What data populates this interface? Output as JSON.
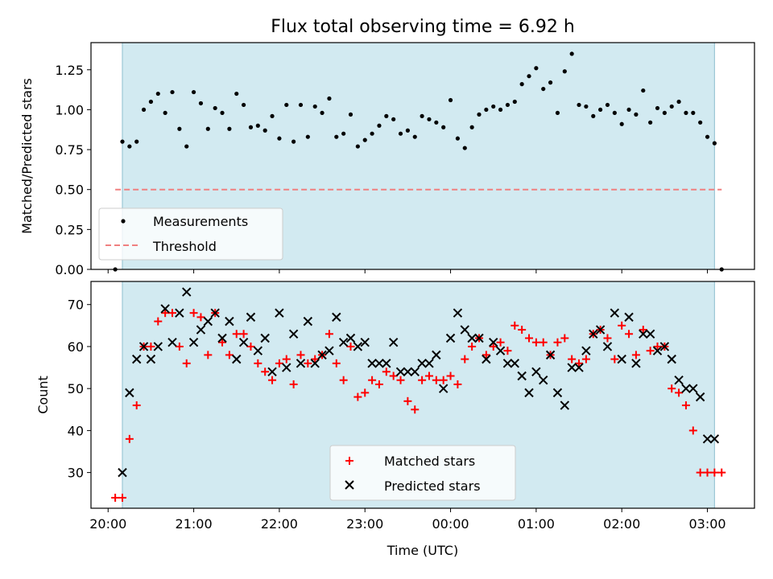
{
  "chart_data": [
    {
      "type": "scatter",
      "title": "Flux total observing time = 6.92 h",
      "ylabel": "Matched/Predicted stars",
      "xlabel": "",
      "ylim": [
        0,
        1.42
      ],
      "xlim": [
        "19:48",
        "03:33"
      ],
      "grid": false,
      "legend": "lower-left",
      "yticks": [
        "0.00",
        "0.25",
        "0.50",
        "0.75",
        "1.00",
        "1.25"
      ],
      "shaded_span": [
        "20:10",
        "03:05"
      ],
      "series": [
        {
          "name": "Measurements",
          "marker": "dot",
          "color": "#000000",
          "x": [
            "20:05",
            "20:10",
            "20:15",
            "20:20",
            "20:25",
            "20:30",
            "20:35",
            "20:40",
            "20:45",
            "20:50",
            "20:55",
            "21:00",
            "21:05",
            "21:10",
            "21:15",
            "21:20",
            "21:25",
            "21:30",
            "21:35",
            "21:40",
            "21:45",
            "21:50",
            "21:55",
            "22:00",
            "22:05",
            "22:10",
            "22:15",
            "22:20",
            "22:25",
            "22:30",
            "22:35",
            "22:40",
            "22:45",
            "22:50",
            "22:55",
            "23:00",
            "23:05",
            "23:10",
            "23:15",
            "23:20",
            "23:25",
            "23:30",
            "23:35",
            "23:40",
            "23:45",
            "23:50",
            "23:55",
            "00:00",
            "00:05",
            "00:10",
            "00:15",
            "00:20",
            "00:25",
            "00:30",
            "00:35",
            "00:40",
            "00:45",
            "00:50",
            "00:55",
            "01:00",
            "01:05",
            "01:10",
            "01:15",
            "01:20",
            "01:25",
            "01:30",
            "01:35",
            "01:40",
            "01:45",
            "01:50",
            "01:55",
            "02:00",
            "02:05",
            "02:10",
            "02:15",
            "02:20",
            "02:25",
            "02:30",
            "02:35",
            "02:40",
            "02:45",
            "02:50",
            "02:55",
            "03:00",
            "03:05",
            "03:10"
          ],
          "values": [
            0.0,
            0.8,
            0.77,
            0.8,
            1.0,
            1.05,
            1.1,
            0.98,
            1.11,
            0.88,
            0.77,
            1.11,
            1.04,
            0.88,
            1.01,
            0.98,
            0.88,
            1.1,
            1.03,
            0.89,
            0.9,
            0.87,
            0.96,
            0.82,
            1.03,
            0.8,
            1.03,
            0.83,
            1.02,
            0.98,
            1.07,
            0.83,
            0.85,
            0.97,
            0.77,
            0.81,
            0.85,
            0.9,
            0.96,
            0.94,
            0.85,
            0.87,
            0.83,
            0.96,
            0.94,
            0.92,
            0.89,
            1.06,
            0.82,
            0.76,
            0.89,
            0.97,
            1.0,
            1.02,
            1.0,
            1.03,
            1.05,
            1.16,
            1.21,
            1.26,
            1.13,
            1.17,
            0.98,
            1.24,
            1.35,
            1.03,
            1.02,
            0.96,
            1.0,
            1.03,
            0.98,
            0.91,
            1.0,
            0.97,
            1.12,
            0.92,
            1.01,
            0.98,
            1.02,
            1.05,
            0.98,
            0.98,
            0.92,
            0.83,
            0.79,
            0.0
          ]
        },
        {
          "name": "Threshold",
          "style": "dashed",
          "color": "#f08080",
          "x": [
            "20:05",
            "03:10"
          ],
          "values": [
            0.5,
            0.5
          ]
        }
      ]
    },
    {
      "type": "scatter",
      "title": "",
      "ylabel": "Count",
      "xlabel": "Time (UTC)",
      "ylim": [
        21.5,
        75.5
      ],
      "xlim": [
        "19:48",
        "03:33"
      ],
      "grid": false,
      "legend": "lower-center",
      "yticks": [
        "30",
        "40",
        "50",
        "60",
        "70"
      ],
      "xticks": [
        "20:00",
        "21:00",
        "22:00",
        "23:00",
        "00:00",
        "01:00",
        "02:00",
        "03:00"
      ],
      "shaded_span": [
        "20:10",
        "03:05"
      ],
      "series": [
        {
          "name": "Matched stars",
          "marker": "plus",
          "color": "#ff0000",
          "x": [
            "20:05",
            "20:10",
            "20:15",
            "20:20",
            "20:25",
            "20:30",
            "20:35",
            "20:40",
            "20:45",
            "20:50",
            "20:55",
            "21:00",
            "21:05",
            "21:10",
            "21:15",
            "21:20",
            "21:25",
            "21:30",
            "21:35",
            "21:40",
            "21:45",
            "21:50",
            "21:55",
            "22:00",
            "22:05",
            "22:10",
            "22:15",
            "22:20",
            "22:25",
            "22:30",
            "22:35",
            "22:40",
            "22:45",
            "22:50",
            "22:55",
            "23:00",
            "23:05",
            "23:10",
            "23:15",
            "23:20",
            "23:25",
            "23:30",
            "23:35",
            "23:40",
            "23:45",
            "23:50",
            "23:55",
            "00:00",
            "00:05",
            "00:10",
            "00:15",
            "00:20",
            "00:25",
            "00:30",
            "00:35",
            "00:40",
            "00:45",
            "00:50",
            "00:55",
            "01:00",
            "01:05",
            "01:10",
            "01:15",
            "01:20",
            "01:25",
            "01:30",
            "01:35",
            "01:40",
            "01:45",
            "01:50",
            "01:55",
            "02:00",
            "02:05",
            "02:10",
            "02:15",
            "02:20",
            "02:25",
            "02:30",
            "02:35",
            "02:40",
            "02:45",
            "02:50",
            "02:55",
            "03:00",
            "03:05",
            "03:10"
          ],
          "values": [
            24,
            24,
            38,
            46,
            60,
            60,
            66,
            68,
            68,
            60,
            56,
            68,
            67,
            58,
            68,
            61,
            58,
            63,
            63,
            60,
            56,
            54,
            52,
            56,
            57,
            51,
            58,
            56,
            57,
            58,
            63,
            56,
            52,
            60,
            48,
            49,
            52,
            51,
            54,
            53,
            52,
            47,
            45,
            52,
            53,
            52,
            52,
            53,
            51,
            57,
            60,
            62,
            58,
            60,
            61,
            59,
            65,
            64,
            62,
            61,
            61,
            58,
            61,
            62,
            57,
            56,
            57,
            63,
            64,
            62,
            57,
            65,
            63,
            58,
            64,
            59,
            60,
            60,
            50,
            49,
            46,
            40,
            30,
            30,
            30,
            30
          ]
        },
        {
          "name": "Predicted stars",
          "marker": "x",
          "color": "#000000",
          "x": [
            "20:10",
            "20:15",
            "20:20",
            "20:25",
            "20:30",
            "20:35",
            "20:40",
            "20:45",
            "20:50",
            "20:55",
            "21:00",
            "21:05",
            "21:10",
            "21:15",
            "21:20",
            "21:25",
            "21:30",
            "21:35",
            "21:40",
            "21:45",
            "21:50",
            "21:55",
            "22:00",
            "22:05",
            "22:10",
            "22:15",
            "22:20",
            "22:25",
            "22:30",
            "22:35",
            "22:40",
            "22:45",
            "22:50",
            "22:55",
            "23:00",
            "23:05",
            "23:10",
            "23:15",
            "23:20",
            "23:25",
            "23:30",
            "23:35",
            "23:40",
            "23:45",
            "23:50",
            "23:55",
            "00:00",
            "00:05",
            "00:10",
            "00:15",
            "00:20",
            "00:25",
            "00:30",
            "00:35",
            "00:40",
            "00:45",
            "00:50",
            "00:55",
            "01:00",
            "01:05",
            "01:10",
            "01:15",
            "01:20",
            "01:25",
            "01:30",
            "01:35",
            "01:40",
            "01:45",
            "01:50",
            "01:55",
            "02:00",
            "02:05",
            "02:10",
            "02:15",
            "02:20",
            "02:25",
            "02:30",
            "02:35",
            "02:40",
            "02:45",
            "02:50",
            "02:55",
            "03:00",
            "03:05"
          ],
          "values": [
            30,
            49,
            57,
            60,
            57,
            60,
            69,
            61,
            68,
            73,
            61,
            64,
            66,
            68,
            62,
            66,
            57,
            61,
            67,
            59,
            62,
            54,
            68,
            55,
            63,
            56,
            66,
            56,
            58,
            59,
            67,
            61,
            62,
            60,
            61,
            56,
            56,
            56,
            61,
            54,
            54,
            54,
            56,
            56,
            58,
            50,
            62,
            68,
            64,
            62,
            62,
            57,
            61,
            59,
            56,
            56,
            53,
            49,
            54,
            52,
            58,
            49,
            46,
            55,
            55,
            59,
            63,
            64,
            60,
            68,
            57,
            67,
            56,
            63,
            63,
            59,
            60,
            57,
            52,
            50,
            50,
            48,
            38,
            38
          ]
        }
      ]
    }
  ]
}
